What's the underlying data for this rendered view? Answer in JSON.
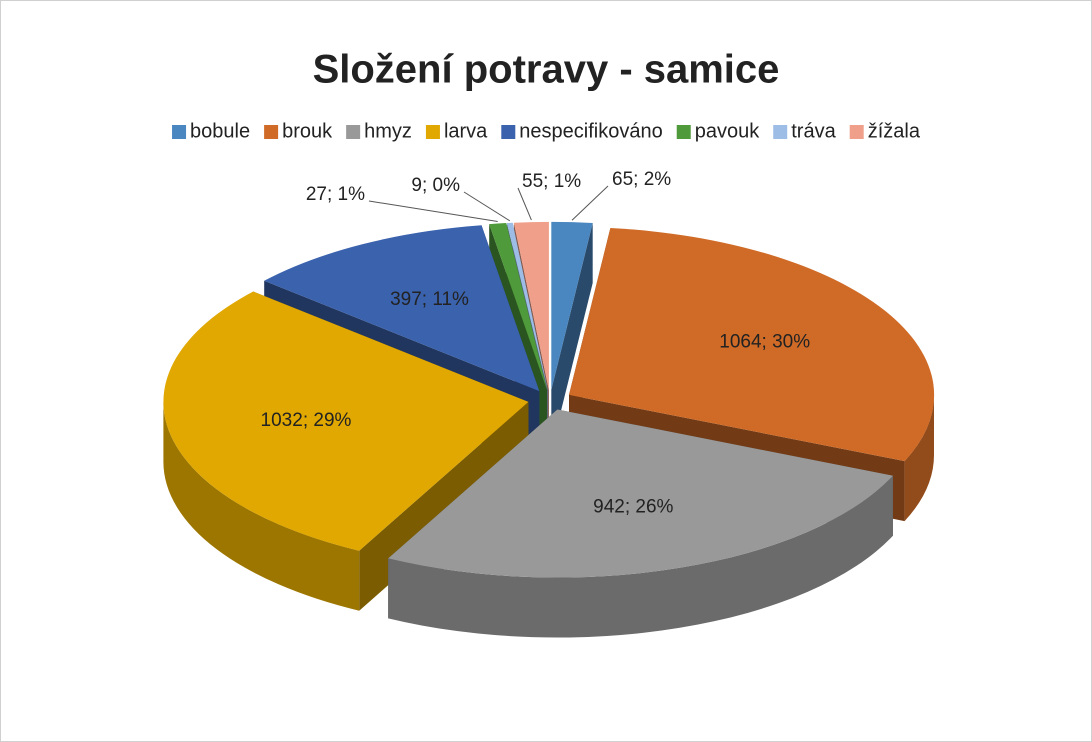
{
  "chart_data": {
    "type": "pie",
    "title": "Složení potravy - samice",
    "categories": [
      "bobule",
      "brouk",
      "hmyz",
      "larva",
      "nespecifikováno",
      "pavouk",
      "tráva",
      "žížala"
    ],
    "values": [
      65,
      1064,
      942,
      1032,
      397,
      27,
      9,
      55
    ],
    "value_labels": [
      "65; 2%",
      "1064; 30%",
      "942; 26%",
      "1032; 29%",
      "397; 11%",
      "27; 1%",
      "9; 0%",
      "55; 1%"
    ],
    "colors": [
      "#4a86c0",
      "#d06b27",
      "#999999",
      "#e0a800",
      "#3a62ad",
      "#4f9a3a",
      "#9dbde6",
      "#f0a08a"
    ],
    "legend": "top"
  }
}
